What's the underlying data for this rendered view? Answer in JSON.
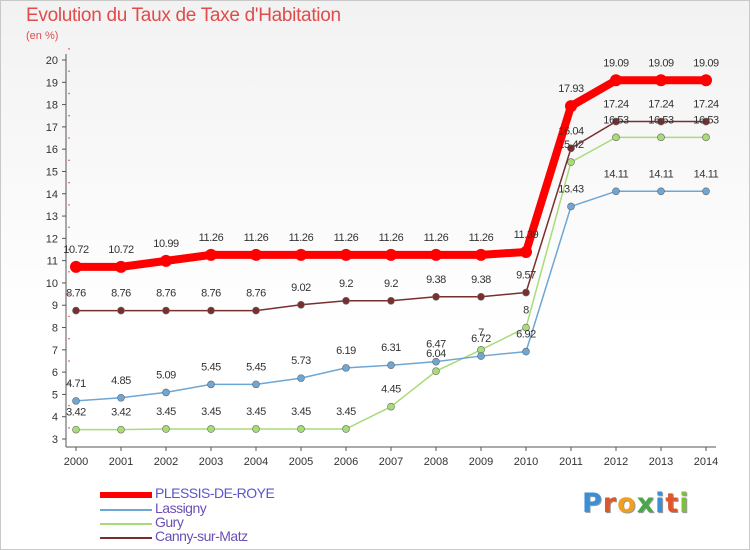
{
  "header": {
    "title": "Evolution du Taux de Taxe d'Habitation",
    "unit": "(en %)"
  },
  "logo": {
    "text": "Proxiti",
    "colors": [
      "#3a8fd6",
      "#e0562a",
      "#f0a020",
      "#4aa84a",
      "#3a8fd6",
      "#e0562a",
      "#7fbf3f"
    ]
  },
  "chart_data": {
    "type": "line",
    "categories": [
      "2000",
      "2001",
      "2002",
      "2003",
      "2004",
      "2005",
      "2006",
      "2007",
      "2008",
      "2009",
      "2010",
      "2011",
      "2012",
      "2013",
      "2014"
    ],
    "ylim": [
      3,
      20
    ],
    "yticks": [
      "3",
      "4",
      "5",
      "6",
      "7",
      "8",
      "9",
      "10",
      "11",
      "12",
      "13",
      "14",
      "15",
      "16",
      "17",
      "18",
      "19",
      "20"
    ],
    "grid": false,
    "legend": "bottom-left",
    "series": [
      {
        "name": "PLESSIS-DE-ROYE",
        "color": "#ff0000",
        "values": [
          10.72,
          10.72,
          10.99,
          11.26,
          11.26,
          11.26,
          11.26,
          11.26,
          11.26,
          11.26,
          11.39,
          17.93,
          19.09,
          19.09,
          19.09
        ],
        "labels": [
          "10.72",
          "10.72",
          "10.99",
          "11.26",
          "11.26",
          "11.26",
          "11.26",
          "11.26",
          "11.26",
          "11.26",
          "11.39",
          "17.93",
          "19.09",
          "19.09",
          "19.09"
        ]
      },
      {
        "name": "Lassigny",
        "color": "#6ea6d4",
        "values": [
          4.71,
          4.85,
          5.09,
          5.45,
          5.45,
          5.73,
          6.19,
          6.31,
          6.47,
          6.72,
          6.92,
          13.43,
          14.11,
          14.11,
          14.11
        ],
        "labels": [
          "4.71",
          "4.85",
          "5.09",
          "5.45",
          "5.45",
          "5.73",
          "6.19",
          "6.31",
          "6.47",
          "6.72",
          "6.92",
          "13.43",
          "14.11",
          "14.11",
          "14.11"
        ]
      },
      {
        "name": "Gury",
        "color": "#a8dc78",
        "values": [
          3.42,
          3.42,
          3.45,
          3.45,
          3.45,
          3.45,
          3.45,
          4.45,
          6.04,
          7,
          8,
          15.42,
          16.53,
          16.53,
          16.53
        ],
        "labels": [
          "3.42",
          "3.42",
          "3.45",
          "3.45",
          "3.45",
          "3.45",
          "3.45",
          "4.45",
          "6.04",
          "7",
          "8",
          "15.42",
          "16.53",
          "16.53",
          "16.53"
        ]
      },
      {
        "name": "Canny-sur-Matz",
        "color": "#7a2f2f",
        "values": [
          8.76,
          8.76,
          8.76,
          8.76,
          8.76,
          9.02,
          9.2,
          9.2,
          9.38,
          9.38,
          9.57,
          16.04,
          17.24,
          17.24,
          17.24
        ],
        "labels": [
          "8.76",
          "8.76",
          "8.76",
          "8.76",
          "8.76",
          "9.02",
          "9.2",
          "9.2",
          "9.38",
          "9.38",
          "9.57",
          "16.04",
          "17.24",
          "17.24",
          "17.24"
        ]
      }
    ]
  }
}
